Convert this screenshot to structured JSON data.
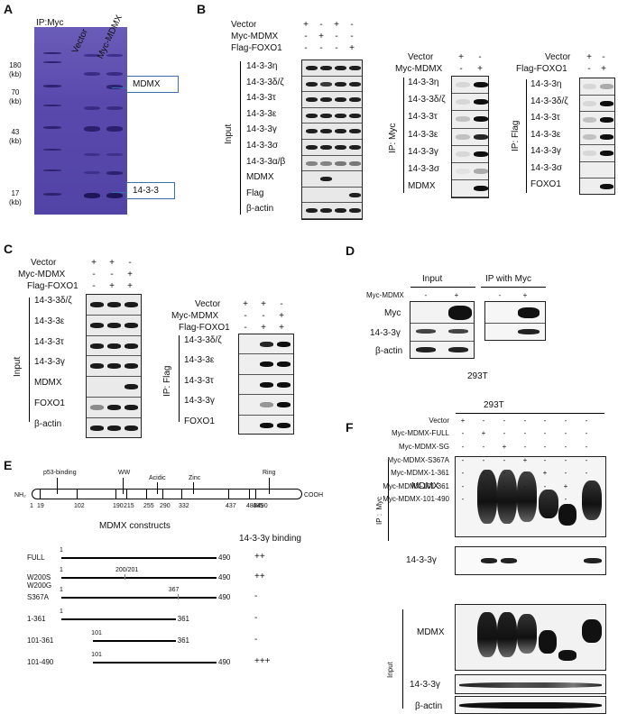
{
  "panels": {
    "A": {
      "letter": "A",
      "title": "IP:Myc",
      "lanes": [
        "Vector",
        "Myc-MDMX"
      ],
      "markers": [
        {
          "v": "180",
          "u": "(kb)"
        },
        {
          "v": "70",
          "u": "(kb)"
        },
        {
          "v": "43",
          "u": "(kb)"
        },
        {
          "v": "17",
          "u": "(kb)"
        }
      ],
      "callouts": [
        "MDMX",
        "14-3-3"
      ]
    },
    "B": {
      "letter": "B",
      "cond_labels": [
        "Vector",
        "Myc-MDMX",
        "Flag-FOXO1"
      ],
      "signs": [
        [
          "+",
          "-",
          "+",
          "-"
        ],
        [
          "-",
          "+",
          "-",
          "-"
        ],
        [
          "-",
          "-",
          "-",
          "+"
        ]
      ],
      "input_label": "Input",
      "input_rows": [
        "14-3-3η",
        "14-3-3δ/ζ",
        "14-3-3τ",
        "14-3-3ε",
        "14-3-3γ",
        "14-3-3σ",
        "14-3-3α/β",
        "MDMX",
        "Flag",
        "β-actin"
      ],
      "ip_myc": {
        "label": "IP: Myc",
        "cond_labels": [
          "Vector",
          "Myc-MDMX"
        ],
        "signs": [
          [
            "+",
            "-"
          ],
          [
            "-",
            "+"
          ]
        ],
        "rows": [
          "14-3-3η",
          "14-3-3δ/ζ",
          "14-3-3τ",
          "14-3-3ε",
          "14-3-3γ",
          "14-3-3σ",
          "MDMX"
        ]
      },
      "ip_flag": {
        "label": "IP: Flag",
        "cond_labels": [
          "Vector",
          "Flag-FOXO1"
        ],
        "signs": [
          [
            "+",
            "-"
          ],
          [
            "-",
            "+"
          ]
        ],
        "rows": [
          "14-3-3η",
          "14-3-3δ/ζ",
          "14-3-3τ",
          "14-3-3ε",
          "14-3-3γ",
          "14-3-3σ",
          "FOXO1"
        ]
      }
    },
    "C": {
      "letter": "C",
      "cond_labels": [
        "Vector",
        "Myc-MDMX",
        "Flag-FOXO1"
      ],
      "signs": [
        [
          "+",
          "+",
          "-"
        ],
        [
          "-",
          "-",
          "+"
        ],
        [
          "-",
          "+",
          "+"
        ]
      ],
      "input_label": "Input",
      "input_rows": [
        "14-3-3δ/ζ",
        "14-3-3ε",
        "14-3-3τ",
        "14-3-3γ",
        "MDMX",
        "FOXO1",
        "β-actin"
      ],
      "ip_label": "IP: Flag",
      "ip_rows": [
        "14-3-3δ/ζ",
        "14-3-3ε",
        "14-3-3τ",
        "14-3-3γ",
        "FOXO1"
      ]
    },
    "D": {
      "letter": "D",
      "col_input": "Input",
      "col_ip": "IP with Myc",
      "cond": "Myc-MDMX",
      "signs": [
        "-",
        "+"
      ],
      "rows": [
        "Myc",
        "14-3-3γ",
        "β-actin"
      ],
      "cell": "293T"
    },
    "E": {
      "letter": "E",
      "domains": [
        "p53-binding",
        "WW",
        "Acidic",
        "Zinc",
        "Ring"
      ],
      "ends": [
        "NH₂",
        "COOH"
      ],
      "positions": [
        "1",
        "19",
        "102",
        "190",
        "215",
        "255",
        "290",
        "332",
        "437",
        "483",
        "485",
        "490"
      ],
      "constructs_title": "MDMX constructs",
      "binding_title": "14-3-3γ binding",
      "constructs": [
        {
          "name": "FULL",
          "start": "1",
          "end": "490",
          "mark": "",
          "binding": "++"
        },
        {
          "name": "W200S",
          "name2": "W200G",
          "start": "1",
          "end": "490",
          "mark": "200/201",
          "binding": "++"
        },
        {
          "name": "S367A",
          "start": "1",
          "end": "490",
          "mark": "367",
          "binding": "-"
        },
        {
          "name": "1-361",
          "start": "1",
          "end": "361",
          "mark": "",
          "binding": "-"
        },
        {
          "name": "101-361",
          "start": "101",
          "end": "361",
          "mark": "",
          "binding": "-"
        },
        {
          "name": "101-490",
          "start": "101",
          "end": "490",
          "mark": "",
          "binding": "+++"
        }
      ]
    },
    "F": {
      "letter": "F",
      "cell": "293T",
      "cond_labels": [
        "Vector",
        "Myc-MDMX-FULL",
        "Myc-MDMX-SG",
        "Myc-MDMX-S367A",
        "Myc-MDMX-1-361",
        "Myc-MDMX-101-361",
        "Myc-MDMX-101-490"
      ],
      "ip_label": "IP :  Myc",
      "input_label": "Input",
      "ip_rows": [
        "MDMX",
        "14-3-3γ"
      ],
      "input_rows": [
        "MDMX",
        "14-3-3γ",
        "β-actin"
      ],
      "sign_plus": "+",
      "sign_minus": "-"
    }
  }
}
